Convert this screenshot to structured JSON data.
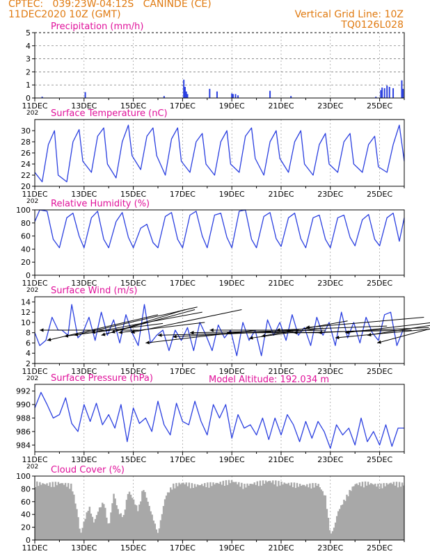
{
  "header": {
    "line1_left": "CPTEC:   039:23W-04:12S   CANINDE (CE)",
    "line2_left": "11DEC2020 10Z (GMT)",
    "line1_right": "Vertical Grid Line: 10Z",
    "line2_right": "TQ0126L028",
    "model_altitude": "Model Altitude: 192.034 m"
  },
  "colors": {
    "header": "#e07a10",
    "panel_title": "#e0109a",
    "series": "#2a3fe0",
    "cloud": "#a8a8a8",
    "wind_arrow": "#000000"
  },
  "x_ticks": [
    "11DEC",
    "13DEC",
    "15DEC",
    "17DEC",
    "19DEC",
    "21DEC",
    "23DEC",
    "25DEC"
  ],
  "x_ticks_cut": "202",
  "chart_data": [
    {
      "type": "bar",
      "title": "Precipitation (mm/h)",
      "ylim": [
        0,
        5
      ],
      "yticks": [
        "0",
        "1",
        "2",
        "3",
        "4",
        "5"
      ],
      "x_unit": "days since 11DEC 10Z",
      "events": [
        [
          0.3,
          0.1
        ],
        [
          2.05,
          0.45
        ],
        [
          5.25,
          0.15
        ],
        [
          6.05,
          1.4
        ],
        [
          6.1,
          0.85
        ],
        [
          6.15,
          0.5
        ],
        [
          6.2,
          0.3
        ],
        [
          7.1,
          0.7
        ],
        [
          7.4,
          0.5
        ],
        [
          8.0,
          0.35
        ],
        [
          8.05,
          0.3
        ],
        [
          8.15,
          0.3
        ],
        [
          8.25,
          0.2
        ],
        [
          9.55,
          0.55
        ],
        [
          10.4,
          0.15
        ],
        [
          13.85,
          0.1
        ],
        [
          14.05,
          0.6
        ],
        [
          14.1,
          0.8
        ],
        [
          14.2,
          0.75
        ],
        [
          14.3,
          0.95
        ],
        [
          14.4,
          0.85
        ],
        [
          14.55,
          0.75
        ],
        [
          14.9,
          1.35
        ],
        [
          14.95,
          0.7
        ]
      ],
      "grid": "dotted"
    },
    {
      "type": "line",
      "title": "Surface Temperature (nC)",
      "ylim": [
        20,
        32
      ],
      "yticks": [
        "20",
        "22",
        "24",
        "26",
        "28",
        "30"
      ],
      "x": [
        0.0,
        0.3,
        0.55,
        0.8,
        0.95,
        1.3,
        1.55,
        1.8,
        1.95,
        2.3,
        2.55,
        2.8,
        2.95,
        3.3,
        3.55,
        3.8,
        3.95,
        4.3,
        4.55,
        4.8,
        4.95,
        5.3,
        5.55,
        5.8,
        5.95,
        6.3,
        6.55,
        6.8,
        6.95,
        7.3,
        7.55,
        7.8,
        7.95,
        8.3,
        8.55,
        8.8,
        8.95,
        9.3,
        9.55,
        9.8,
        9.95,
        10.3,
        10.55,
        10.8,
        10.95,
        11.3,
        11.55,
        11.8,
        11.95,
        12.3,
        12.55,
        12.8,
        12.95,
        13.3,
        13.55,
        13.8,
        13.95,
        14.3,
        14.55,
        14.8,
        15.0
      ],
      "values": [
        22.5,
        20.8,
        27.5,
        30.0,
        22.0,
        20.8,
        28.0,
        30.2,
        24.5,
        22.5,
        29.0,
        30.5,
        24.0,
        21.5,
        28.0,
        31.0,
        25.5,
        23.0,
        29.0,
        30.5,
        25.5,
        22.0,
        28.5,
        30.5,
        24.5,
        22.5,
        28.0,
        29.5,
        24.0,
        22.0,
        28.0,
        30.0,
        24.0,
        22.5,
        29.0,
        30.5,
        25.0,
        22.0,
        28.0,
        30.0,
        25.0,
        22.5,
        28.0,
        30.0,
        24.0,
        22.0,
        27.5,
        29.5,
        24.0,
        22.5,
        28.0,
        29.5,
        24.0,
        22.5,
        27.5,
        29.0,
        23.5,
        22.5,
        27.5,
        31.0,
        24.5
      ]
    },
    {
      "type": "line",
      "title": "Relative Humidity (%)",
      "ylim": [
        0,
        100
      ],
      "yticks": [
        "0",
        "20",
        "40",
        "60",
        "80",
        "100"
      ],
      "x": [
        0.0,
        0.2,
        0.5,
        0.75,
        1.0,
        1.3,
        1.55,
        1.8,
        2.0,
        2.3,
        2.55,
        2.8,
        3.0,
        3.3,
        3.55,
        3.8,
        4.0,
        4.3,
        4.55,
        4.8,
        5.0,
        5.3,
        5.55,
        5.8,
        6.0,
        6.3,
        6.55,
        6.8,
        7.0,
        7.3,
        7.55,
        7.8,
        8.0,
        8.3,
        8.55,
        8.8,
        9.0,
        9.3,
        9.55,
        9.8,
        10.0,
        10.3,
        10.55,
        10.8,
        11.0,
        11.3,
        11.55,
        11.8,
        12.0,
        12.3,
        12.55,
        12.8,
        13.0,
        13.3,
        13.55,
        13.8,
        14.0,
        14.3,
        14.55,
        14.8,
        15.0
      ],
      "values": [
        82,
        100,
        98,
        55,
        42,
        88,
        95,
        60,
        42,
        88,
        98,
        55,
        42,
        82,
        96,
        58,
        42,
        72,
        78,
        50,
        42,
        90,
        96,
        55,
        42,
        92,
        98,
        60,
        42,
        92,
        95,
        58,
        42,
        98,
        100,
        55,
        42,
        90,
        96,
        56,
        44,
        88,
        95,
        56,
        42,
        88,
        92,
        55,
        42,
        88,
        92,
        58,
        45,
        85,
        93,
        55,
        45,
        88,
        95,
        52,
        88
      ]
    },
    {
      "type": "line",
      "title": "Surface Wind (m/s)",
      "ylim": [
        2,
        15
      ],
      "yticks": [
        "2",
        "4",
        "6",
        "8",
        "10",
        "12",
        "14"
      ],
      "x": [
        0.0,
        0.2,
        0.45,
        0.7,
        0.95,
        1.1,
        1.35,
        1.5,
        1.75,
        1.95,
        2.2,
        2.45,
        2.7,
        2.95,
        3.2,
        3.45,
        3.7,
        3.95,
        4.2,
        4.45,
        4.7,
        4.95,
        5.2,
        5.45,
        5.7,
        5.95,
        6.2,
        6.45,
        6.7,
        6.95,
        7.2,
        7.45,
        7.7,
        7.95,
        8.2,
        8.45,
        8.7,
        8.95,
        9.2,
        9.45,
        9.7,
        9.95,
        10.2,
        10.45,
        10.7,
        10.95,
        11.2,
        11.45,
        11.7,
        11.95,
        12.2,
        12.45,
        12.7,
        12.95,
        13.2,
        13.45,
        13.7,
        13.95,
        14.2,
        14.45,
        14.7,
        14.95
      ],
      "values": [
        8.0,
        5.5,
        6.5,
        11.0,
        8.5,
        8.5,
        7.5,
        13.5,
        7.0,
        8.0,
        11.0,
        6.5,
        12.0,
        7.5,
        10.5,
        6.0,
        11.5,
        8.0,
        5.5,
        13.5,
        6.0,
        7.5,
        8.5,
        4.5,
        8.5,
        6.5,
        9.0,
        4.5,
        10.0,
        7.5,
        4.5,
        9.5,
        7.0,
        8.5,
        3.5,
        10.0,
        6.5,
        8.5,
        3.5,
        10.5,
        7.5,
        10.0,
        6.5,
        11.5,
        7.5,
        9.0,
        5.5,
        11.0,
        7.5,
        10.0,
        5.5,
        12.0,
        7.0,
        10.0,
        6.0,
        11.0,
        8.0,
        6.5,
        11.5,
        12.0,
        5.5,
        8.5
      ],
      "wind_vectors": [
        [
          0.2,
          8.5,
          4.2,
          0.0
        ],
        [
          0.5,
          6.5,
          4.5,
          5.0
        ],
        [
          1.2,
          7.3,
          4.0,
          2.5
        ],
        [
          1.6,
          7.5,
          5.0,
          5.5
        ],
        [
          2.3,
          8.0,
          4.5,
          4.0
        ],
        [
          2.7,
          7.5,
          3.8,
          5.0
        ],
        [
          3.1,
          8.0,
          3.0,
          4.5
        ],
        [
          3.4,
          8.0,
          3.5,
          2.0
        ],
        [
          3.9,
          8.0,
          4.5,
          4.5
        ],
        [
          4.5,
          6.0,
          4.5,
          2.5
        ],
        [
          5.0,
          7.5,
          5.5,
          0.7
        ],
        [
          5.6,
          7.2,
          4.0,
          1.0
        ],
        [
          6.3,
          8.0,
          5.5,
          0.5
        ],
        [
          7.1,
          8.5,
          3.6,
          0.0
        ],
        [
          7.8,
          8.0,
          3.8,
          0.0
        ],
        [
          8.7,
          6.9,
          3.0,
          2.0
        ],
        [
          9.2,
          7.3,
          3.5,
          3.0
        ],
        [
          9.8,
          8.5,
          4.5,
          0.8
        ],
        [
          10.5,
          8.0,
          4.8,
          0.5
        ],
        [
          11.0,
          9.0,
          4.8,
          2.0
        ],
        [
          11.5,
          8.0,
          4.5,
          1.0
        ],
        [
          12.2,
          7.0,
          4.5,
          2.0
        ],
        [
          12.6,
          8.0,
          4.5,
          2.5
        ],
        [
          13.5,
          7.5,
          4.0,
          3.0
        ],
        [
          13.9,
          6.0,
          3.5,
          4.5
        ]
      ]
    },
    {
      "type": "line",
      "title": "Surface Pressure (hPa)",
      "ylim": [
        983,
        993
      ],
      "yticks": [
        "984",
        "986",
        "988",
        "990",
        "992"
      ],
      "x": [
        0.0,
        0.25,
        0.5,
        0.75,
        1.0,
        1.25,
        1.5,
        1.75,
        2.0,
        2.25,
        2.5,
        2.75,
        3.0,
        3.25,
        3.5,
        3.75,
        4.0,
        4.25,
        4.5,
        4.75,
        5.0,
        5.25,
        5.5,
        5.75,
        6.0,
        6.25,
        6.5,
        6.75,
        7.0,
        7.25,
        7.5,
        7.75,
        8.0,
        8.25,
        8.5,
        8.75,
        9.0,
        9.25,
        9.5,
        9.75,
        10.0,
        10.25,
        10.5,
        10.75,
        11.0,
        11.25,
        11.5,
        11.75,
        12.0,
        12.25,
        12.5,
        12.75,
        13.0,
        13.25,
        13.5,
        13.75,
        14.0,
        14.25,
        14.5,
        14.75,
        15.0
      ],
      "values": [
        989.5,
        991.8,
        990.0,
        988.0,
        988.5,
        991.0,
        987.2,
        986.0,
        990.0,
        987.5,
        990.2,
        987.0,
        988.5,
        986.5,
        990.0,
        984.5,
        989.5,
        987.2,
        988.0,
        986.0,
        990.5,
        987.0,
        985.5,
        990.2,
        987.5,
        987.0,
        990.5,
        987.5,
        985.5,
        990.0,
        988.0,
        990.0,
        985.0,
        988.5,
        986.5,
        987.0,
        985.5,
        988.0,
        984.8,
        988.0,
        985.5,
        988.5,
        987.0,
        984.5,
        987.5,
        985.0,
        987.5,
        986.0,
        983.5,
        987.0,
        985.5,
        986.5,
        984.0,
        988.0,
        984.5,
        986.0,
        984.0,
        987.0,
        983.8,
        986.5,
        986.5
      ]
    },
    {
      "type": "area",
      "title": "Cloud Cover (%)",
      "ylim": [
        0,
        100
      ],
      "yticks": [
        "0",
        "20",
        "40",
        "60",
        "80",
        "100"
      ],
      "x": [
        0.0,
        0.5,
        1.0,
        1.5,
        1.75,
        1.85,
        2.0,
        2.2,
        2.4,
        2.6,
        2.8,
        3.0,
        3.2,
        3.4,
        3.6,
        3.8,
        4.0,
        4.2,
        4.4,
        4.6,
        4.8,
        5.0,
        5.3,
        5.6,
        6.0,
        6.5,
        7.0,
        7.5,
        8.0,
        8.5,
        9.0,
        9.5,
        10.0,
        10.5,
        11.0,
        11.5,
        11.8,
        12.0,
        12.15,
        12.3,
        12.5,
        12.8,
        13.0,
        13.5,
        14.0,
        14.5,
        15.0
      ],
      "values": [
        92,
        90,
        92,
        88,
        40,
        8,
        30,
        55,
        28,
        50,
        62,
        20,
        75,
        45,
        38,
        80,
        65,
        48,
        85,
        60,
        35,
        10,
        70,
        88,
        92,
        88,
        90,
        92,
        95,
        88,
        92,
        95,
        92,
        90,
        88,
        90,
        70,
        8,
        20,
        45,
        60,
        80,
        90,
        92,
        88,
        92,
        90
      ]
    }
  ]
}
